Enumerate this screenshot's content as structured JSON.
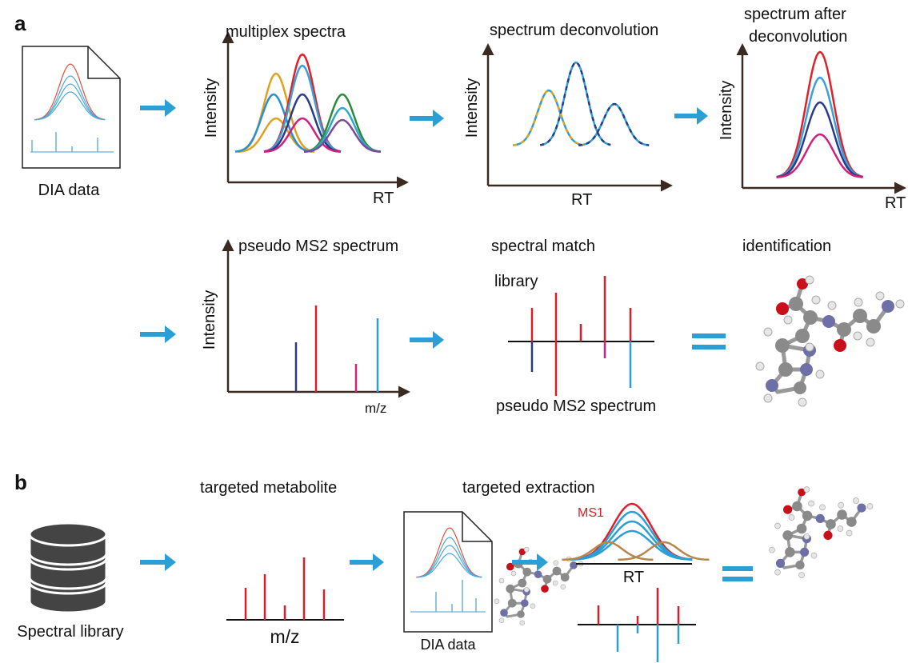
{
  "panel_a": {
    "label": "a",
    "dia_data": "DIA data",
    "multiplex": {
      "title": "multiplex spectra",
      "y_label": "Intensity",
      "x_label": "RT"
    },
    "deconvolution": {
      "title": "spectrum deconvolution",
      "y_label": "Intensity",
      "x_label": "RT"
    },
    "after": {
      "title_lines": [
        "spectrum after",
        "deconvolution"
      ],
      "y_label": "Intensity",
      "x_label": "RT"
    },
    "pseudo": {
      "title": "pseudo MS2 spectrum",
      "y_label": "Intensity",
      "x_label": "m/z"
    },
    "match": {
      "title": "spectral match",
      "top_label": "library",
      "bottom_label": "pseudo MS2 spectrum"
    },
    "identification": {
      "title": "identification"
    }
  },
  "panel_b": {
    "label": "b",
    "library": "Spectral library",
    "metabolite": {
      "title": "targeted metabolite",
      "x_label": "m/z"
    },
    "dia_data": "DIA data",
    "extraction": {
      "title": "targeted extraction",
      "trace_label": "MS1",
      "x_label": "RT"
    }
  }
}
